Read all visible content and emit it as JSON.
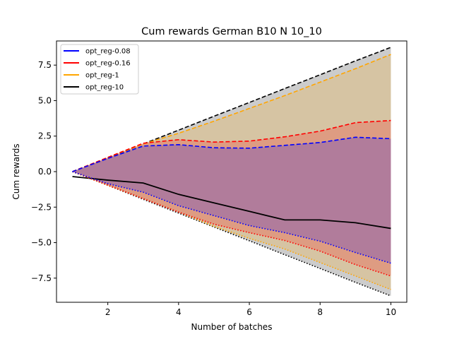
{
  "chart_data": {
    "type": "line",
    "title": "Cum rewards German B10 N 10_10",
    "xlabel": "Number of batches",
    "ylabel": "Cum rewards",
    "xlim": [
      0.55,
      10.45
    ],
    "ylim": [
      -9.2,
      9.2
    ],
    "xticks": [
      2,
      4,
      6,
      8,
      10
    ],
    "yticks": [
      -7.5,
      -5.0,
      -2.5,
      0.0,
      2.5,
      5.0,
      7.5
    ],
    "x": [
      1,
      2,
      3,
      4,
      5,
      6,
      7,
      8,
      9,
      10
    ],
    "legend": {
      "position": "top-left"
    },
    "series": [
      {
        "name": "opt_reg-0.08",
        "color": "#0000ff",
        "upper": [
          0,
          0.93,
          1.8,
          1.9,
          1.68,
          1.65,
          1.85,
          2.05,
          2.42,
          2.32
        ],
        "lower": [
          0,
          -0.85,
          -1.45,
          -2.4,
          -3.1,
          -3.8,
          -4.3,
          -4.9,
          -5.7,
          -6.45
        ]
      },
      {
        "name": "opt_reg-0.16",
        "color": "#ff0000",
        "upper": [
          0,
          1.0,
          2.0,
          2.25,
          2.08,
          2.15,
          2.45,
          2.85,
          3.45,
          3.6
        ],
        "lower": [
          0,
          -0.95,
          -1.9,
          -2.85,
          -3.7,
          -4.3,
          -4.85,
          -5.6,
          -6.55,
          -7.35
        ]
      },
      {
        "name": "opt_reg-1",
        "color": "#ffa500",
        "upper": [
          0,
          1.0,
          1.95,
          2.7,
          3.55,
          4.45,
          5.35,
          6.3,
          7.25,
          8.25
        ],
        "lower": [
          0,
          -0.97,
          -1.9,
          -2.85,
          -3.85,
          -4.7,
          -5.45,
          -6.4,
          -7.35,
          -8.3
        ]
      },
      {
        "name": "opt_reg-10",
        "color": "#000000",
        "mean": [
          -0.35,
          -0.6,
          -0.8,
          -1.6,
          -2.2,
          -2.8,
          -3.4,
          -3.4,
          -3.6,
          -4.0
        ],
        "upper": [
          0,
          0.97,
          1.95,
          2.92,
          3.9,
          4.87,
          5.85,
          6.82,
          7.8,
          8.75
        ],
        "lower": [
          0,
          -0.97,
          -1.95,
          -2.92,
          -3.9,
          -4.87,
          -5.85,
          -6.82,
          -7.8,
          -8.75
        ]
      }
    ]
  }
}
